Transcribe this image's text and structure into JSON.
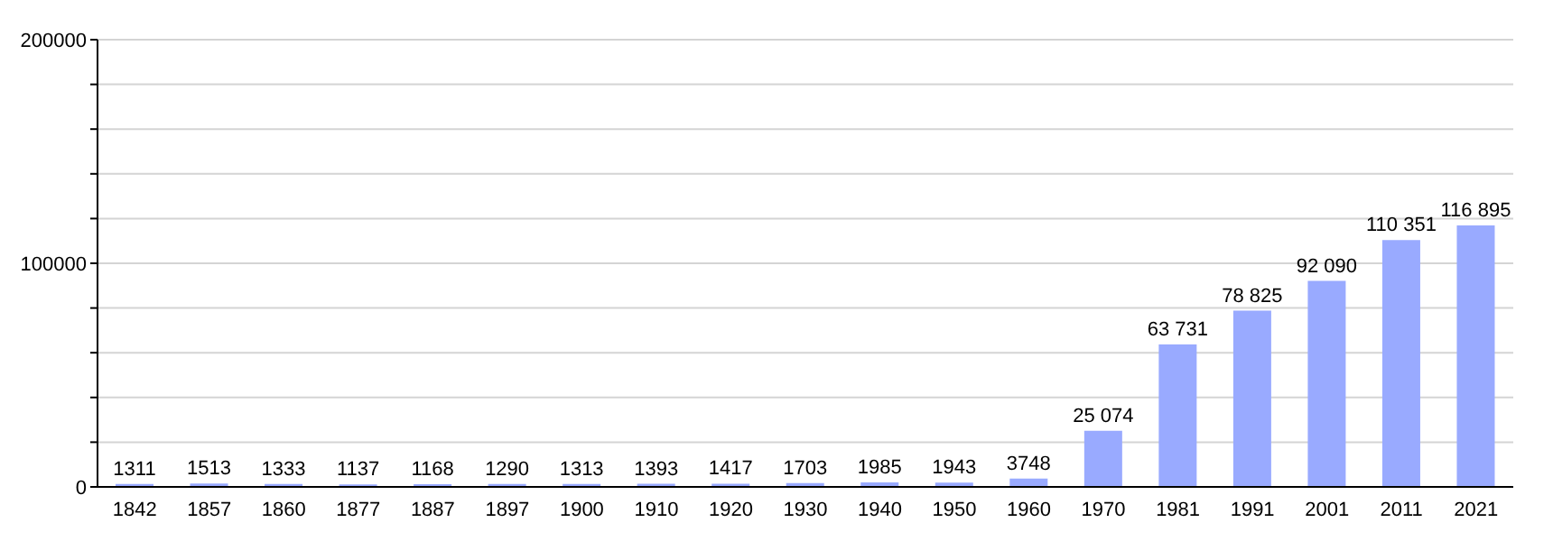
{
  "chart_data": {
    "type": "bar",
    "categories": [
      "1842",
      "1857",
      "1860",
      "1877",
      "1887",
      "1897",
      "1900",
      "1910",
      "1920",
      "1930",
      "1940",
      "1950",
      "1960",
      "1970",
      "1981",
      "1991",
      "2001",
      "2011",
      "2021"
    ],
    "values": [
      1311,
      1513,
      1333,
      1137,
      1168,
      1290,
      1313,
      1393,
      1417,
      1703,
      1985,
      1943,
      3748,
      25074,
      63731,
      78825,
      92090,
      110351,
      116895
    ],
    "value_labels": [
      "1311",
      "1513",
      "1333",
      "1137",
      "1168",
      "1290",
      "1313",
      "1393",
      "1417",
      "1703",
      "1985",
      "1943",
      "3748",
      "25 074",
      "63 731",
      "78 825",
      "92 090",
      "110 351",
      "116 895"
    ],
    "color": "#99aaff",
    "ylim": [
      0,
      200000
    ],
    "yticks": [
      0,
      {
        "value": 20000,
        "label": null
      },
      {
        "value": 40000,
        "label": null
      },
      {
        "value": 60000,
        "label": null
      },
      {
        "value": 80000,
        "label": null
      },
      100000,
      {
        "value": 120000,
        "label": null
      },
      {
        "value": 140000,
        "label": null
      },
      {
        "value": 160000,
        "label": null
      },
      {
        "value": 180000,
        "label": null
      },
      200000
    ],
    "grid": "y"
  }
}
